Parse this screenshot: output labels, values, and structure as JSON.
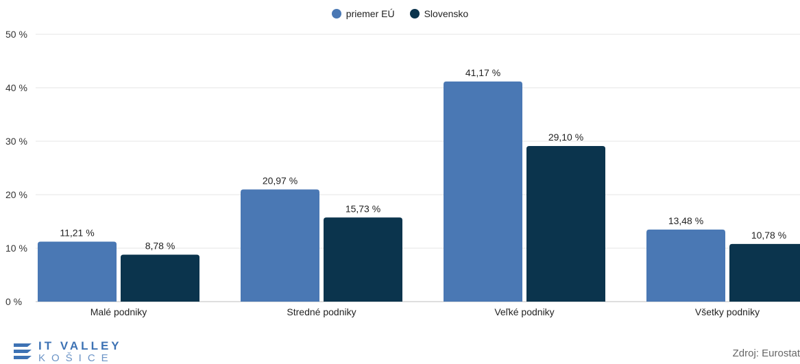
{
  "chart_data": {
    "type": "bar",
    "categories": [
      "Malé podniky",
      "Stredné podniky",
      "Veľké podniky",
      "Všetky podniky"
    ],
    "series": [
      {
        "name": "priemer EÚ",
        "color": "#4a78b4",
        "values": [
          11.21,
          20.97,
          41.17,
          13.48
        ],
        "labels": [
          "11,21 %",
          "20,97 %",
          "41,17 %",
          "13,48 %"
        ]
      },
      {
        "name": "Slovensko",
        "color": "#0b344d",
        "values": [
          8.78,
          15.73,
          29.1,
          10.78
        ],
        "labels": [
          "8,78 %",
          "15,73 %",
          "29,10 %",
          "10,78 %"
        ]
      }
    ],
    "ylim": [
      0,
      50
    ],
    "yticks": [
      0,
      10,
      20,
      30,
      40,
      50
    ],
    "ytick_labels": [
      "0 %",
      "10 %",
      "20 %",
      "30 %",
      "40 %",
      "50 %"
    ],
    "grid": true,
    "legend_position": "top-center"
  },
  "branding": {
    "logo_line1": "IT VALLEY",
    "logo_line2": "KOŠICE",
    "logo_icon": "wave-stripes-icon"
  },
  "source": "Zdroj: Eurostat"
}
